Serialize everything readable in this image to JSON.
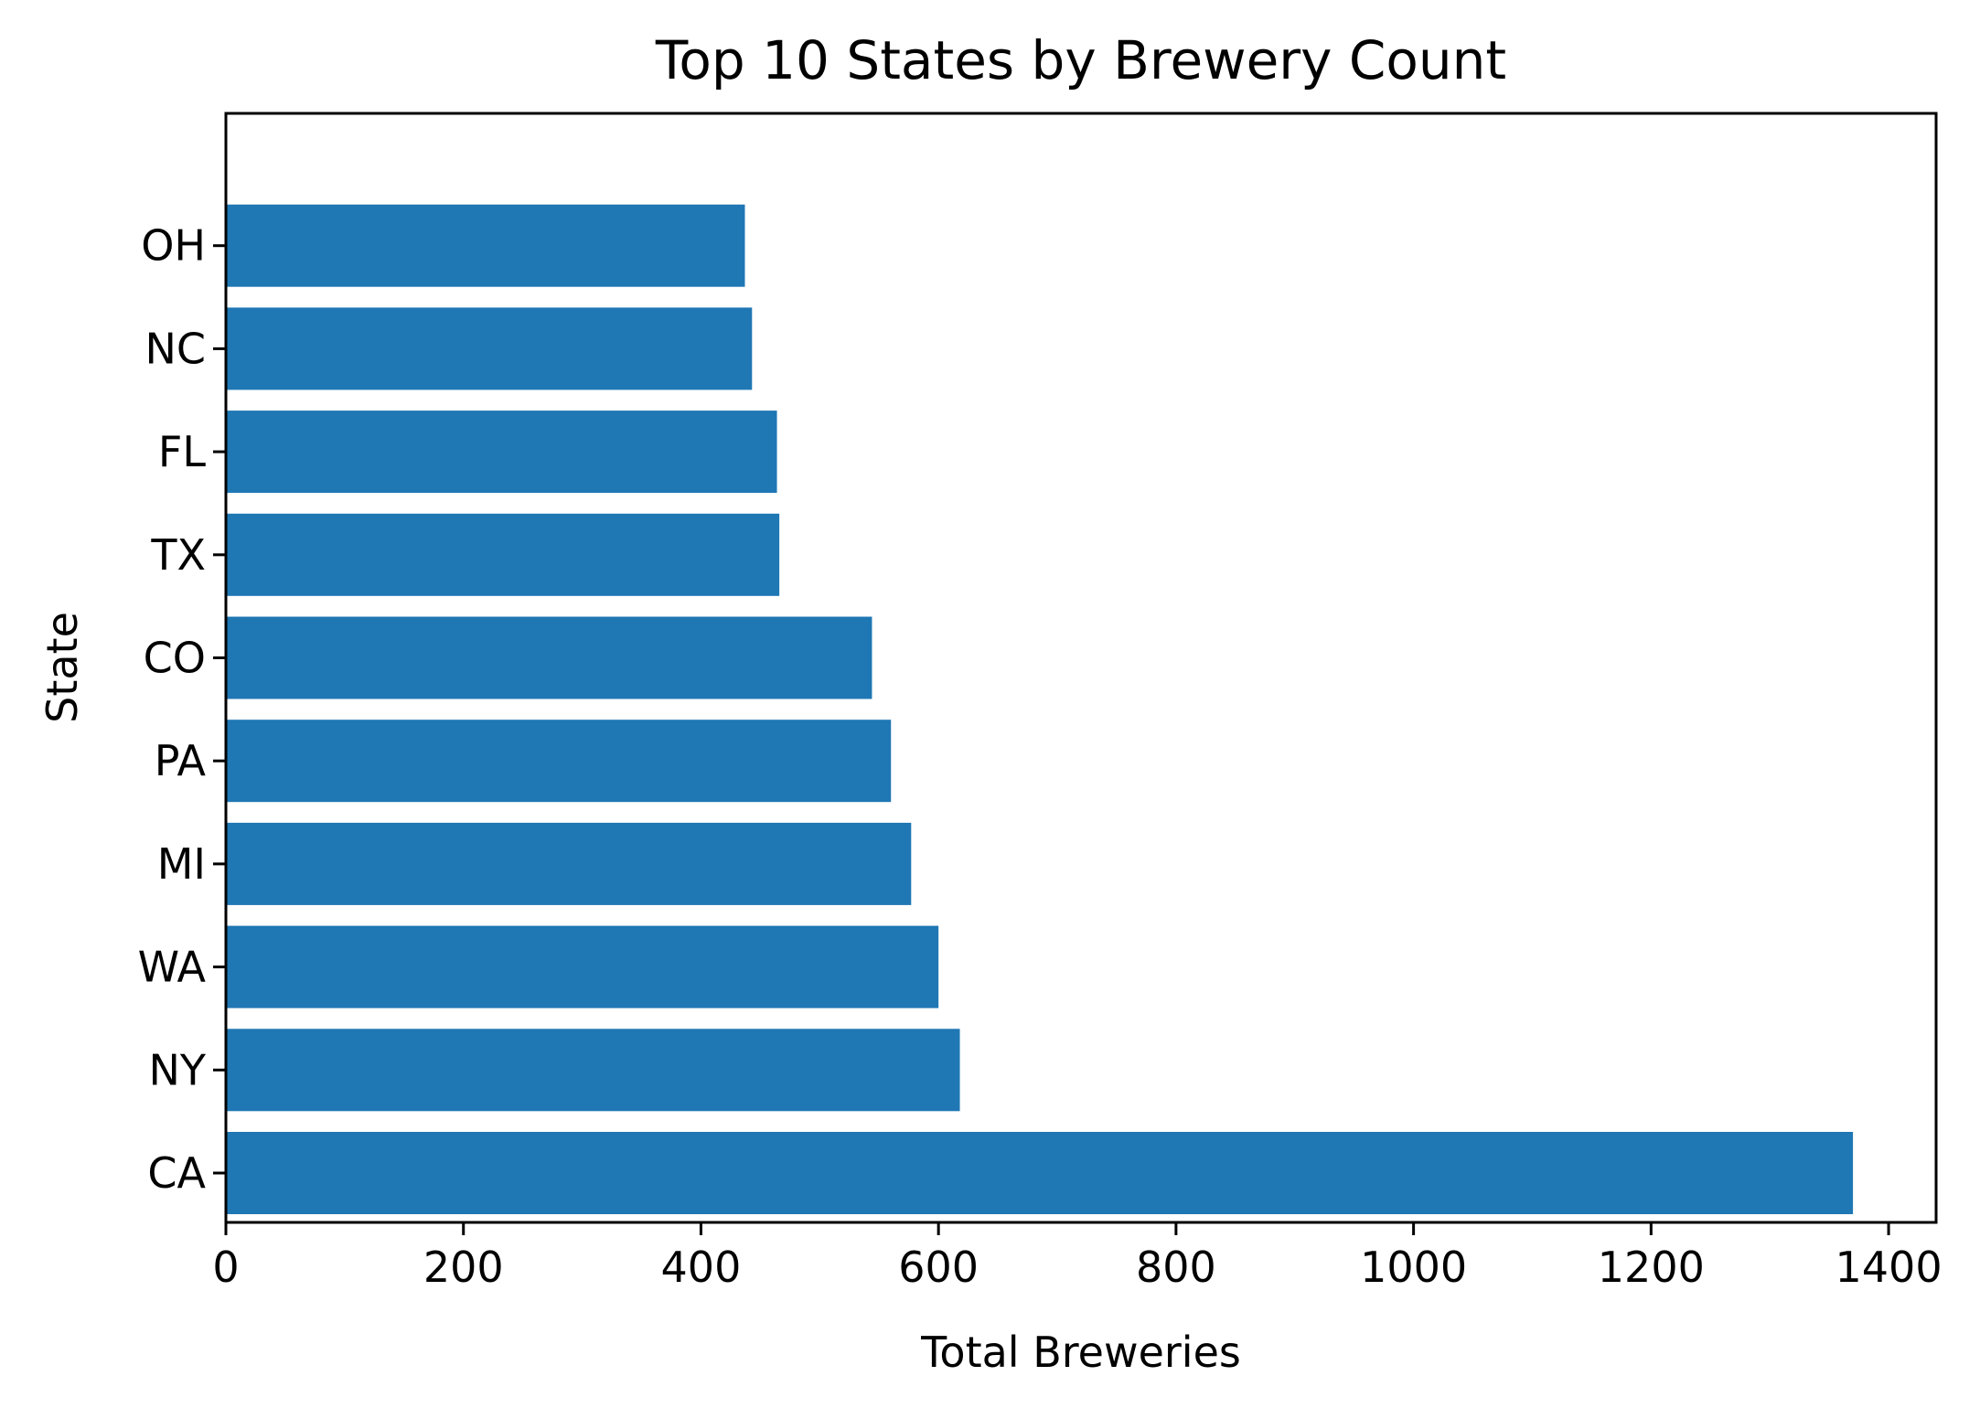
{
  "chart_data": {
    "type": "bar",
    "orientation": "horizontal",
    "title": "Top 10 States by Brewery Count",
    "xlabel": "Total Breweries",
    "ylabel": "State",
    "categories": [
      "CA",
      "NY",
      "WA",
      "MI",
      "PA",
      "CO",
      "TX",
      "FL",
      "NC",
      "OH"
    ],
    "values": [
      1370,
      618,
      600,
      577,
      560,
      544,
      466,
      464,
      443,
      437
    ],
    "xlim": [
      0,
      1440
    ],
    "xticks": [
      0,
      200,
      400,
      600,
      800,
      1000,
      1200,
      1400
    ],
    "grid": false,
    "bar_color": "#1f77b4"
  }
}
